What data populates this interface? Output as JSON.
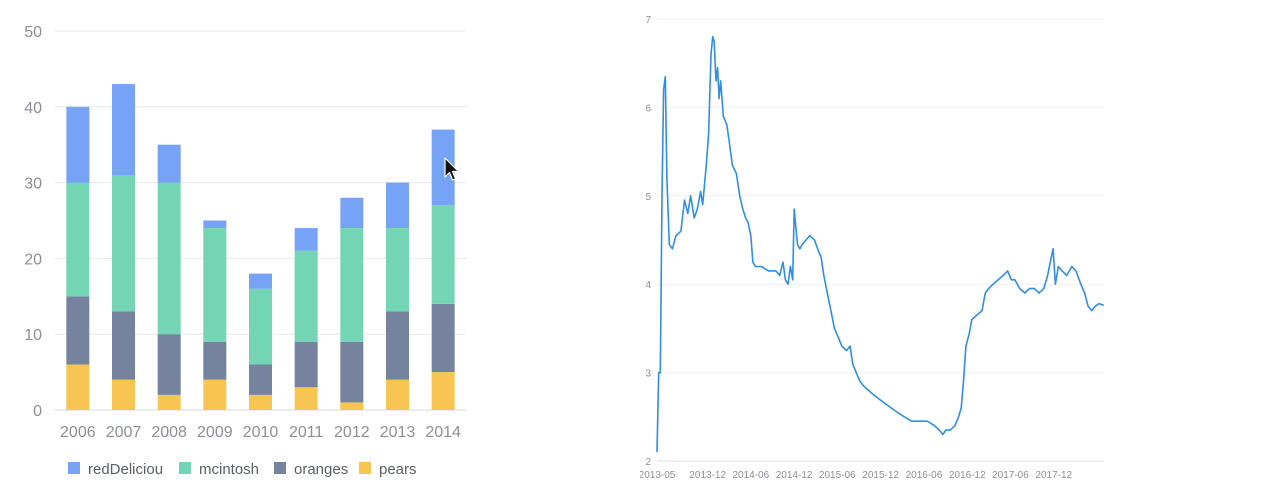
{
  "colors": {
    "redDeliciou": "#76a3f6",
    "mcintosh": "#73d5b3",
    "oranges": "#75839f",
    "pears": "#f8c553",
    "line": "#2f8fe3",
    "grid": "#e9e9ec",
    "tick_text": "#8c8f96"
  },
  "cursor": "arrow-cursor-icon",
  "chart_data": [
    {
      "type": "bar",
      "stacked": true,
      "categories": [
        "2006",
        "2007",
        "2008",
        "2009",
        "2010",
        "2011",
        "2012",
        "2013",
        "2014"
      ],
      "series": [
        {
          "name": "pears",
          "values": [
            6,
            4,
            2,
            4,
            2,
            3,
            1,
            4,
            5
          ]
        },
        {
          "name": "oranges",
          "values": [
            9,
            9,
            8,
            5,
            4,
            6,
            8,
            9,
            9
          ]
        },
        {
          "name": "mcintosh",
          "values": [
            15,
            18,
            20,
            15,
            10,
            12,
            15,
            11,
            13
          ]
        },
        {
          "name": "redDeliciou",
          "values": [
            10,
            12,
            5,
            1,
            2,
            3,
            4,
            6,
            10
          ]
        }
      ],
      "legend_order": [
        "redDeliciou",
        "mcintosh",
        "oranges",
        "pears"
      ],
      "yticks": [
        "0",
        "10",
        "20",
        "30",
        "40",
        "50"
      ],
      "ylim": [
        0,
        50
      ],
      "grid": true,
      "legend_position": "bottom-left"
    },
    {
      "type": "line",
      "x_ticks": [
        "2013-05",
        "2013-12",
        "2014-06",
        "2014-12",
        "2015-06",
        "2015-12",
        "2016-06",
        "2016-12",
        "2017-06",
        "2017-12"
      ],
      "y_ticks": [
        "2",
        "3",
        "4",
        "5",
        "6",
        "7"
      ],
      "ylim": [
        2,
        7
      ],
      "xlim": [
        "2013-05",
        "2018-07"
      ],
      "grid": true,
      "points": [
        [
          "2013-05-01",
          2.1
        ],
        [
          "2013-05-08",
          3.0
        ],
        [
          "2013-05-15",
          3.0
        ],
        [
          "2013-05-22",
          5.0
        ],
        [
          "2013-05-29",
          6.2
        ],
        [
          "2013-06-05",
          6.35
        ],
        [
          "2013-06-12",
          5.2
        ],
        [
          "2013-06-22",
          4.45
        ],
        [
          "2013-07-05",
          4.4
        ],
        [
          "2013-07-20",
          4.55
        ],
        [
          "2013-08-10",
          4.6
        ],
        [
          "2013-08-25",
          4.95
        ],
        [
          "2013-09-08",
          4.8
        ],
        [
          "2013-09-20",
          5.0
        ],
        [
          "2013-10-05",
          4.75
        ],
        [
          "2013-10-18",
          4.85
        ],
        [
          "2013-11-01",
          5.05
        ],
        [
          "2013-11-10",
          4.9
        ],
        [
          "2013-11-25",
          5.35
        ],
        [
          "2013-12-05",
          5.7
        ],
        [
          "2013-12-15",
          6.6
        ],
        [
          "2013-12-22",
          6.8
        ],
        [
          "2013-12-28",
          6.75
        ],
        [
          "2014-01-05",
          6.3
        ],
        [
          "2014-01-12",
          6.45
        ],
        [
          "2014-01-18",
          6.1
        ],
        [
          "2014-01-25",
          6.3
        ],
        [
          "2014-02-05",
          5.9
        ],
        [
          "2014-02-20",
          5.8
        ],
        [
          "2014-03-05",
          5.55
        ],
        [
          "2014-03-15",
          5.35
        ],
        [
          "2014-04-01",
          5.25
        ],
        [
          "2014-04-15",
          5.0
        ],
        [
          "2014-04-28",
          4.85
        ],
        [
          "2014-05-10",
          4.75
        ],
        [
          "2014-05-20",
          4.7
        ],
        [
          "2014-06-01",
          4.55
        ],
        [
          "2014-06-10",
          4.25
        ],
        [
          "2014-06-20",
          4.2
        ],
        [
          "2014-07-15",
          4.2
        ],
        [
          "2014-08-15",
          4.15
        ],
        [
          "2014-09-15",
          4.15
        ],
        [
          "2014-10-01",
          4.1
        ],
        [
          "2014-10-15",
          4.25
        ],
        [
          "2014-10-25",
          4.05
        ],
        [
          "2014-11-05",
          4.0
        ],
        [
          "2014-11-15",
          4.2
        ],
        [
          "2014-11-25",
          4.05
        ],
        [
          "2014-12-01",
          4.85
        ],
        [
          "2014-12-08",
          4.65
        ],
        [
          "2014-12-15",
          4.45
        ],
        [
          "2014-12-25",
          4.4
        ],
        [
          "2015-01-05",
          4.45
        ],
        [
          "2015-01-20",
          4.5
        ],
        [
          "2015-02-05",
          4.55
        ],
        [
          "2015-02-25",
          4.5
        ],
        [
          "2015-03-10",
          4.4
        ],
        [
          "2015-03-25",
          4.3
        ],
        [
          "2015-04-05",
          4.1
        ],
        [
          "2015-04-20",
          3.9
        ],
        [
          "2015-05-05",
          3.7
        ],
        [
          "2015-05-20",
          3.5
        ],
        [
          "2015-06-05",
          3.4
        ],
        [
          "2015-06-20",
          3.3
        ],
        [
          "2015-07-10",
          3.25
        ],
        [
          "2015-07-25",
          3.3
        ],
        [
          "2015-08-05",
          3.1
        ],
        [
          "2015-08-20",
          3.0
        ],
        [
          "2015-09-05",
          2.9
        ],
        [
          "2015-09-20",
          2.85
        ],
        [
          "2015-10-10",
          2.8
        ],
        [
          "2015-11-01",
          2.75
        ],
        [
          "2015-11-25",
          2.7
        ],
        [
          "2015-12-20",
          2.65
        ],
        [
          "2016-01-15",
          2.6
        ],
        [
          "2016-02-10",
          2.55
        ],
        [
          "2016-03-10",
          2.5
        ],
        [
          "2016-04-10",
          2.45
        ],
        [
          "2016-05-15",
          2.45
        ],
        [
          "2016-06-15",
          2.45
        ],
        [
          "2016-07-15",
          2.4
        ],
        [
          "2016-08-05",
          2.35
        ],
        [
          "2016-08-20",
          2.3
        ],
        [
          "2016-09-01",
          2.35
        ],
        [
          "2016-09-20",
          2.35
        ],
        [
          "2016-10-10",
          2.4
        ],
        [
          "2016-10-25",
          2.5
        ],
        [
          "2016-11-05",
          2.6
        ],
        [
          "2016-11-15",
          2.9
        ],
        [
          "2016-11-25",
          3.3
        ],
        [
          "2016-12-10",
          3.45
        ],
        [
          "2016-12-20",
          3.6
        ],
        [
          "2017-01-10",
          3.65
        ],
        [
          "2017-02-01",
          3.7
        ],
        [
          "2017-02-15",
          3.9
        ],
        [
          "2017-03-01",
          3.95
        ],
        [
          "2017-03-20",
          4.0
        ],
        [
          "2017-04-10",
          4.05
        ],
        [
          "2017-05-01",
          4.1
        ],
        [
          "2017-05-20",
          4.15
        ],
        [
          "2017-06-05",
          4.05
        ],
        [
          "2017-06-20",
          4.05
        ],
        [
          "2017-07-10",
          3.95
        ],
        [
          "2017-08-01",
          3.9
        ],
        [
          "2017-08-20",
          3.95
        ],
        [
          "2017-09-10",
          3.95
        ],
        [
          "2017-09-30",
          3.9
        ],
        [
          "2017-10-20",
          3.95
        ],
        [
          "2017-11-05",
          4.1
        ],
        [
          "2017-11-20",
          4.3
        ],
        [
          "2017-11-28",
          4.4
        ],
        [
          "2017-12-08",
          4.0
        ],
        [
          "2017-12-20",
          4.2
        ],
        [
          "2018-01-05",
          4.15
        ],
        [
          "2018-01-25",
          4.1
        ],
        [
          "2018-02-15",
          4.2
        ],
        [
          "2018-03-05",
          4.15
        ],
        [
          "2018-03-25",
          4.0
        ],
        [
          "2018-04-10",
          3.9
        ],
        [
          "2018-04-25",
          3.75
        ],
        [
          "2018-05-10",
          3.7
        ],
        [
          "2018-05-25",
          3.75
        ],
        [
          "2018-06-10",
          3.78
        ],
        [
          "2018-06-30",
          3.76
        ]
      ]
    }
  ]
}
